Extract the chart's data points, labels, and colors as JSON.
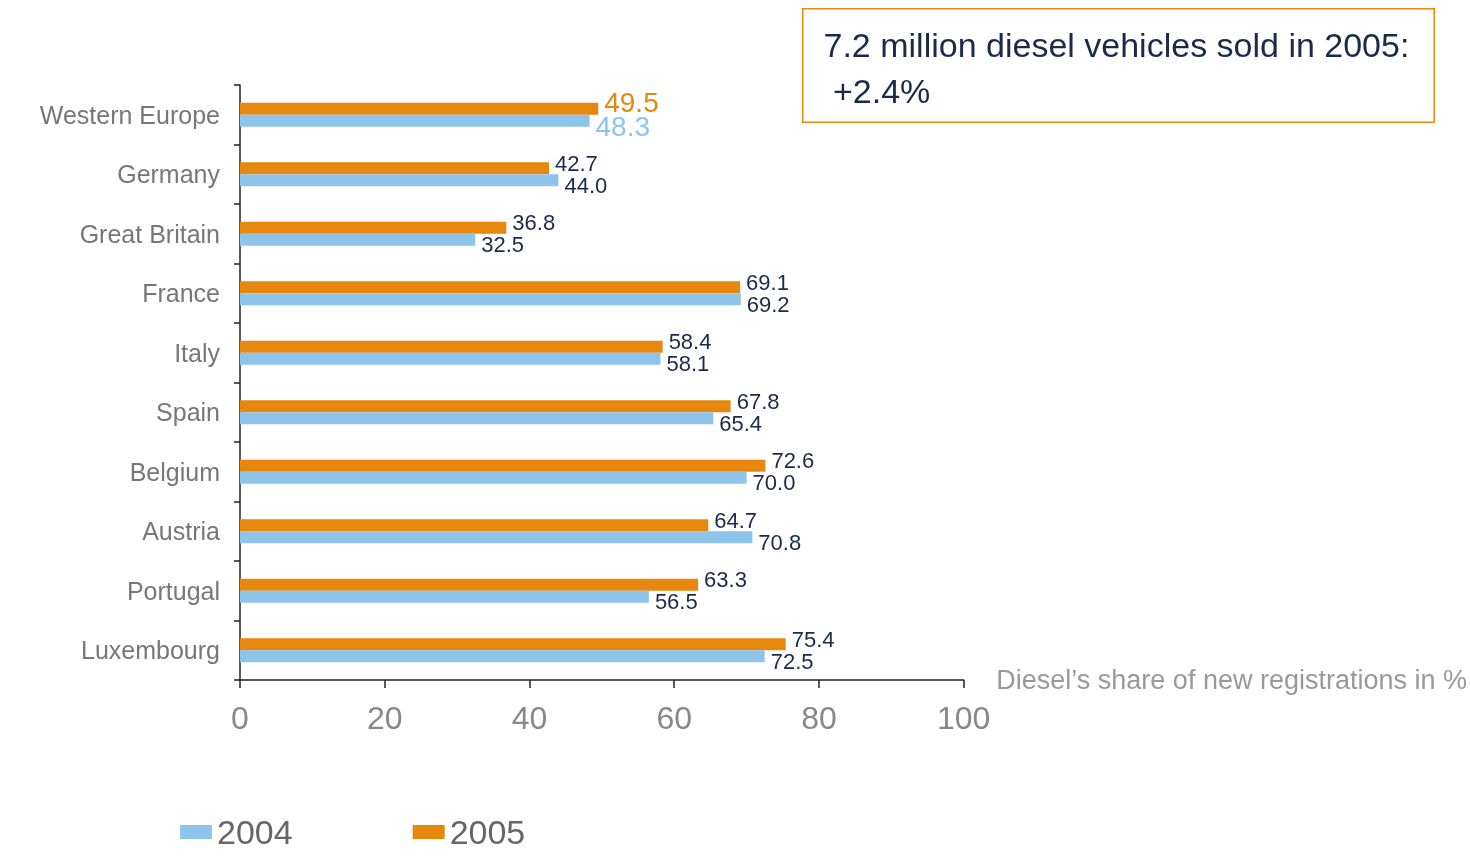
{
  "chart_data": {
    "type": "bar",
    "orientation": "horizontal",
    "categories": [
      "Western Europe",
      "Germany",
      "Great Britain",
      "France",
      "Italy",
      "Spain",
      "Belgium",
      "Austria",
      "Portugal",
      "Luxembourg"
    ],
    "series": [
      {
        "name": "2004",
        "color": "#8ec4ea",
        "values": [
          48.3,
          44.0,
          32.5,
          69.2,
          58.1,
          65.4,
          70.0,
          70.8,
          56.5,
          72.5
        ],
        "value_labels": [
          "48.3",
          "44.0",
          "32.5",
          "69.2",
          "58.1",
          "65.4",
          "70.0",
          "70.8",
          "56.5",
          "72.5"
        ]
      },
      {
        "name": "2005",
        "color": "#e8870e",
        "values": [
          49.5,
          42.7,
          36.8,
          69.1,
          58.4,
          67.8,
          72.6,
          64.7,
          63.3,
          75.4
        ],
        "value_labels": [
          "49.5",
          "42.7",
          "36.8",
          "69.1",
          "58.4",
          "67.8",
          "72.6",
          "64.7",
          "63.3",
          "75.4"
        ]
      }
    ],
    "xlabel": "Diesel’s share of new registrations in %",
    "xlim": [
      0,
      100
    ],
    "xticks": [
      0,
      20,
      40,
      60,
      80,
      100
    ],
    "annotations": [
      "7.2 million diesel vehicles sold in 2005: +2.4%"
    ],
    "grid": false,
    "legend": "bottom left"
  }
}
